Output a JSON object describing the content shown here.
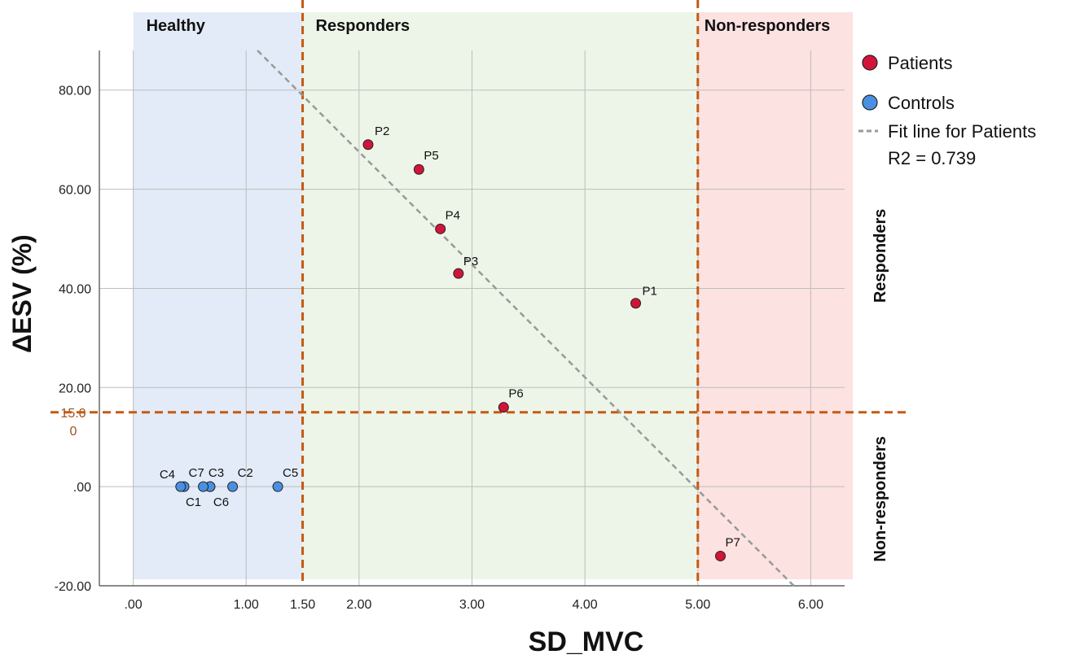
{
  "chart_data": {
    "type": "scatter",
    "xlabel": "SD_MVC",
    "ylabel": "ΔESV (%)",
    "xlim": [
      -0.3,
      6.3
    ],
    "ylim": [
      -20,
      88
    ],
    "x_ticks": [
      ".00",
      "1.00",
      "1.50",
      "2.00",
      "3.00",
      "4.00",
      "5.00",
      "6.00"
    ],
    "x_tick_values": [
      0,
      1,
      1.5,
      2,
      3,
      4,
      5,
      6
    ],
    "y_ticks": [
      "-20.00",
      ".00",
      "15.0\n0",
      "20.00",
      "40.00",
      "60.00",
      "80.00"
    ],
    "y_tick_values": [
      -20,
      0,
      15,
      20,
      40,
      60,
      80
    ],
    "grid": true,
    "regions": [
      {
        "label": "Healthy",
        "x_range": [
          0,
          1.5
        ],
        "color": "#e3ebf8"
      },
      {
        "label": "Responders",
        "x_range": [
          1.5,
          5.0
        ],
        "color": "#edf5e8"
      },
      {
        "label": "Non-responders",
        "x_range": [
          5.0,
          6.3
        ],
        "color": "#fde2e2"
      }
    ],
    "threshold_x": [
      1.5,
      5.0
    ],
    "threshold_y": 15,
    "threshold_color": "#c55a11",
    "right_labels": [
      {
        "label": "Responders",
        "y_range": [
          15,
          88
        ]
      },
      {
        "label": "Non-responders",
        "y_range": [
          -20,
          15
        ]
      }
    ],
    "series": [
      {
        "name": "Patients",
        "color": "#d2143a",
        "points": [
          {
            "label": "P1",
            "x": 4.45,
            "y": 37
          },
          {
            "label": "P2",
            "x": 2.08,
            "y": 69
          },
          {
            "label": "P3",
            "x": 2.88,
            "y": 43
          },
          {
            "label": "P4",
            "x": 2.72,
            "y": 52
          },
          {
            "label": "P5",
            "x": 2.53,
            "y": 64
          },
          {
            "label": "P6",
            "x": 3.28,
            "y": 16
          },
          {
            "label": "P7",
            "x": 5.2,
            "y": -14
          }
        ]
      },
      {
        "name": "Controls",
        "color": "#4a90e2",
        "points": [
          {
            "label": "C1",
            "x": 0.45,
            "y": 0
          },
          {
            "label": "C2",
            "x": 0.88,
            "y": 0
          },
          {
            "label": "C3",
            "x": 0.68,
            "y": 0
          },
          {
            "label": "C4",
            "x": 0.42,
            "y": 0
          },
          {
            "label": "C5",
            "x": 1.28,
            "y": 0
          },
          {
            "label": "C6",
            "x": 0.68,
            "y": 0
          },
          {
            "label": "C7",
            "x": 0.62,
            "y": 0
          }
        ]
      }
    ],
    "fit_line": {
      "name": "Fit line for Patients",
      "r2_label": "R2 = 0.739",
      "color": "#999999",
      "x": [
        1.1,
        5.85
      ],
      "y": [
        88,
        -20
      ]
    },
    "legend_position": "top-right"
  }
}
